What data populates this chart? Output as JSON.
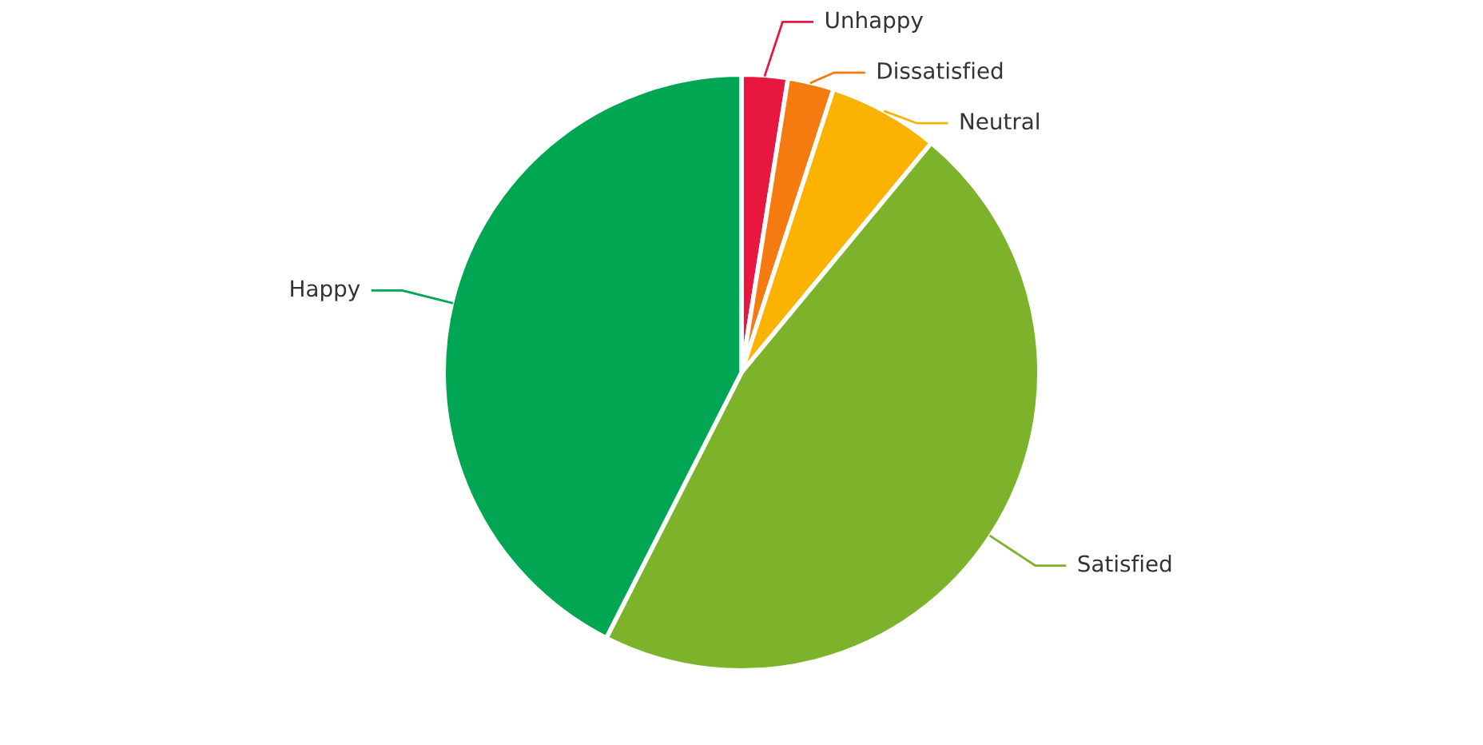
{
  "chart_data": {
    "type": "pie",
    "categories": [
      "Unhappy",
      "Dissatisfied",
      "Neutral",
      "Satisfied",
      "Happy"
    ],
    "values": [
      2.5,
      2.5,
      6,
      46.5,
      42.5
    ],
    "colors": [
      "#e8173f",
      "#f57a10",
      "#fbb200",
      "#7cb32b",
      "#00a651"
    ],
    "legend": false
  }
}
